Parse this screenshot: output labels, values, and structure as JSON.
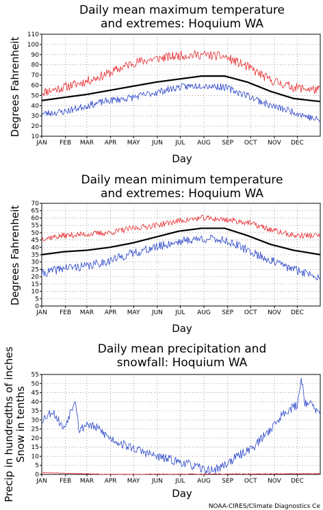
{
  "charts": [
    {
      "type": "line",
      "title_lines": [
        "Daily mean maximum temperature",
        "and extremes: Hoquium WA"
      ],
      "xlabel": "Day",
      "ylabel_lines": [
        "Degrees Fahrenheit"
      ],
      "ylim": [
        10,
        110
      ],
      "yticks": [
        10,
        20,
        30,
        40,
        50,
        60,
        70,
        80,
        90,
        100,
        110
      ],
      "months": [
        "JAN",
        "FEB",
        "MAR",
        "APR",
        "MAY",
        "JUN",
        "JUL",
        "AUG",
        "SEP",
        "OCT",
        "NOV",
        "DEC"
      ],
      "grid": true,
      "series": [
        {
          "role": "record high",
          "color": "#e8262b",
          "anchors_doy": [
            1,
            30,
            60,
            90,
            120,
            150,
            180,
            210,
            240,
            270,
            300,
            330,
            365
          ],
          "anchors_val": [
            53,
            58,
            64,
            72,
            82,
            86,
            89,
            90,
            88,
            78,
            65,
            58,
            55
          ],
          "noise": 4.5,
          "seed": 11
        },
        {
          "role": "mean",
          "color": "#000000",
          "anchors_doy": [
            1,
            30,
            60,
            90,
            120,
            150,
            180,
            210,
            240,
            270,
            300,
            330,
            365
          ],
          "anchors_val": [
            45,
            48,
            51,
            55,
            59,
            63,
            66,
            69,
            69,
            63,
            54,
            47,
            44
          ],
          "noise": 0,
          "seed": 0
        },
        {
          "role": "record low",
          "color": "#2742c7",
          "anchors_doy": [
            1,
            30,
            60,
            90,
            120,
            150,
            180,
            210,
            240,
            270,
            300,
            330,
            365
          ],
          "anchors_val": [
            32,
            34,
            40,
            45,
            48,
            53,
            58,
            60,
            58,
            50,
            40,
            34,
            25
          ],
          "noise": 3.5,
          "seed": 23
        }
      ]
    },
    {
      "type": "line",
      "title_lines": [
        "Daily mean minimum temperature",
        "and extremes: Hoquium WA"
      ],
      "xlabel": "Day",
      "ylabel_lines": [
        "Degrees Fahrenheit"
      ],
      "ylim": [
        0,
        70
      ],
      "yticks": [
        0,
        5,
        10,
        15,
        20,
        25,
        30,
        35,
        40,
        45,
        50,
        55,
        60,
        65,
        70
      ],
      "months": [
        "JAN",
        "FEB",
        "MAR",
        "APR",
        "MAY",
        "JUN",
        "JUL",
        "AUG",
        "SEP",
        "OCT",
        "NOV",
        "DEC"
      ],
      "grid": true,
      "series": [
        {
          "role": "record high",
          "color": "#e8262b",
          "anchors_doy": [
            1,
            30,
            60,
            90,
            120,
            150,
            180,
            210,
            240,
            270,
            300,
            330,
            365
          ],
          "anchors_val": [
            46,
            48,
            49,
            50,
            53,
            55,
            58,
            60,
            59,
            57,
            52,
            48,
            48
          ],
          "noise": 2.0,
          "seed": 37
        },
        {
          "role": "mean",
          "color": "#000000",
          "anchors_doy": [
            1,
            30,
            60,
            90,
            120,
            150,
            180,
            210,
            240,
            270,
            300,
            330,
            365
          ],
          "anchors_val": [
            35,
            37,
            38,
            40,
            43,
            47,
            51,
            53,
            53,
            48,
            42,
            38,
            35
          ],
          "noise": 0,
          "seed": 0
        },
        {
          "role": "record low",
          "color": "#2742c7",
          "anchors_doy": [
            1,
            30,
            60,
            90,
            120,
            150,
            180,
            210,
            240,
            270,
            300,
            330,
            365
          ],
          "anchors_val": [
            22,
            26,
            27,
            31,
            36,
            40,
            44,
            46,
            45,
            38,
            31,
            25,
            20
          ],
          "noise": 3.0,
          "seed": 41
        }
      ]
    },
    {
      "type": "line",
      "title_lines": [
        "Daily mean precipitation and",
        "snowfall: Hoquium WA"
      ],
      "xlabel": "Day",
      "ylabel_lines": [
        "Precip in hundredths of inches",
        "Snow in tenths"
      ],
      "ylim": [
        0,
        55
      ],
      "yticks": [
        0,
        5,
        10,
        15,
        20,
        25,
        30,
        35,
        40,
        45,
        50,
        55
      ],
      "months": [
        "JAN",
        "FEB",
        "MAR",
        "APR",
        "MAY",
        "JUN",
        "JUL",
        "AUG",
        "SEP",
        "OCT",
        "NOV",
        "DEC"
      ],
      "grid": true,
      "series": [
        {
          "role": "precipitation",
          "color": "#2742c7",
          "anchors_doy": [
            1,
            15,
            30,
            45,
            50,
            60,
            75,
            90,
            110,
            130,
            150,
            170,
            190,
            210,
            222,
            235,
            250,
            265,
            280,
            300,
            320,
            335,
            340,
            345,
            355,
            365
          ],
          "anchors_val": [
            30,
            35,
            25,
            42,
            24,
            28,
            25,
            20,
            16,
            13,
            10,
            8,
            6,
            3,
            2,
            4,
            8,
            12,
            16,
            25,
            35,
            38,
            53,
            40,
            38,
            32
          ],
          "noise": 2.5,
          "seed": 53
        },
        {
          "role": "snowfall",
          "color": "#e8262b",
          "anchors_doy": [
            1,
            20,
            40,
            60,
            80,
            100,
            365
          ],
          "anchors_val": [
            1.0,
            0.8,
            0.5,
            0.3,
            0.1,
            0.0,
            0.4
          ],
          "noise": 0.2,
          "seed": 61
        }
      ]
    }
  ],
  "credit": "NOAA-CIRES/Climate Diagnostics Ce"
}
